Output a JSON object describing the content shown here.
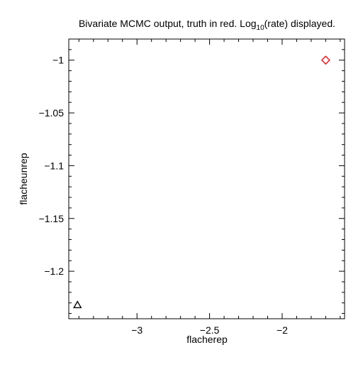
{
  "chart_data": {
    "type": "scatter",
    "title": {
      "before": "Bivariate MCMC output, truth in red. Log",
      "subscript": "10",
      "after": "(rate) displayed."
    },
    "xlabel": "flacherep",
    "ylabel": "flacheunrep",
    "xlim": [
      -3.47,
      -1.57
    ],
    "ylim": [
      -1.245,
      -0.98
    ],
    "x_ticks": [
      {
        "value": -3,
        "label": "−3"
      },
      {
        "value": -2.5,
        "label": "−2.5"
      },
      {
        "value": -2,
        "label": "−2"
      }
    ],
    "x_minor_step": 0.1,
    "y_ticks": [
      {
        "value": -1,
        "label": "−1"
      },
      {
        "value": -1.05,
        "label": "−1.05"
      },
      {
        "value": -1.1,
        "label": "−1.1"
      },
      {
        "value": -1.15,
        "label": "−1.15"
      },
      {
        "value": -1.2,
        "label": "−1.2"
      }
    ],
    "y_minor_step": 0.01,
    "grid": false,
    "points": [
      {
        "name": "truth",
        "x": -1.7,
        "y": -1.0,
        "marker": "diamond",
        "color": "#e8141c"
      },
      {
        "name": "estimate",
        "x": -3.41,
        "y": -1.232,
        "marker": "triangle",
        "color": "#000000"
      }
    ]
  }
}
